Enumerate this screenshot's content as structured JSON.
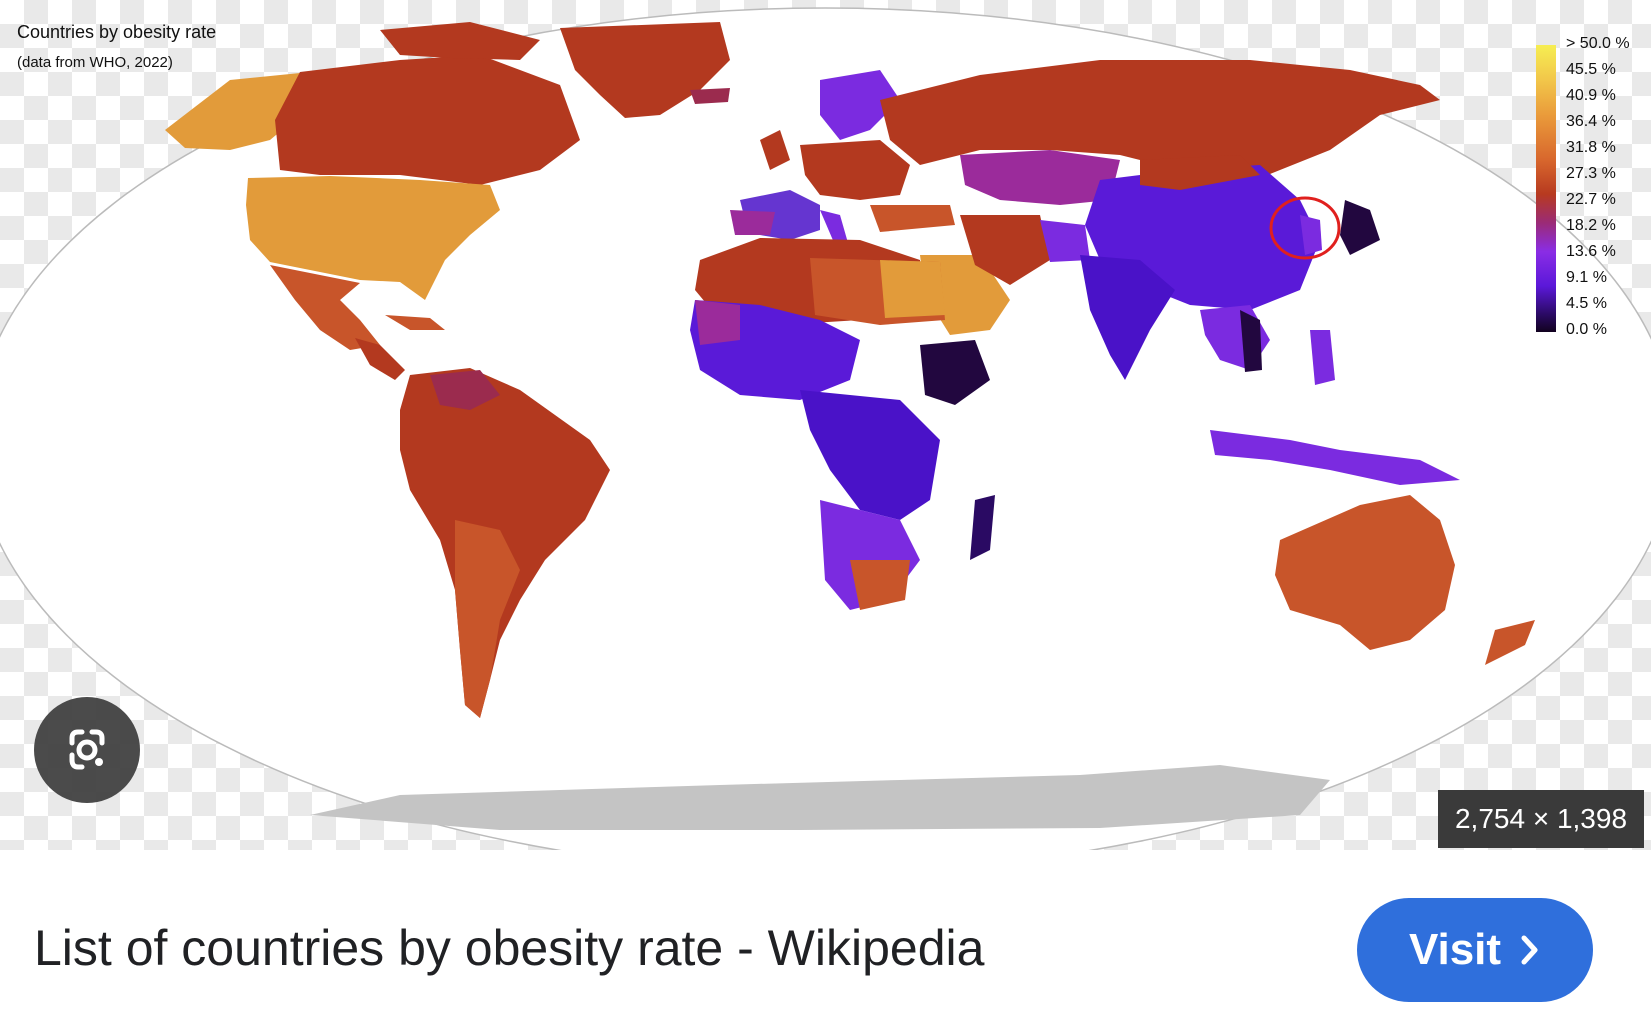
{
  "map": {
    "title": "Countries by obesity rate",
    "subtitle": "(data from WHO, 2022)",
    "legend": {
      "labels": [
        "> 50.0 %",
        "45.5 %",
        "40.9 %",
        "36.4 %",
        "31.8 %",
        "27.3 %",
        "22.7 %",
        "18.2 %",
        "13.6 %",
        "9.1 %",
        "4.5 %",
        "0.0 %"
      ]
    },
    "colors": {
      "high": "#f6ee52",
      "orange": "#e29b3a",
      "dark_orange": "#c8552a",
      "red_brown": "#b3391f",
      "magenta": "#9b2b9b",
      "violet": "#7b2be0",
      "indigo": "#4a12c8",
      "very_low": "#22073f",
      "antarctica": "#c4c4c4",
      "highlight_circle": "#e0201e"
    }
  },
  "image_info": {
    "dimensions": "2,754 × 1,398"
  },
  "result": {
    "title": "List of countries by obesity rate - Wikipedia",
    "visit_label": "Visit",
    "visit_icon": "chevron-right-icon"
  },
  "lens": {
    "icon": "google-lens-icon"
  }
}
